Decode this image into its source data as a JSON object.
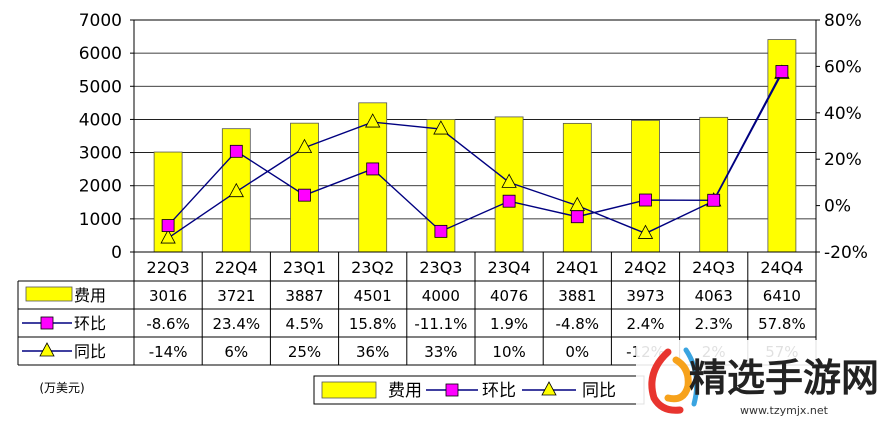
{
  "chart_data": {
    "type": "bar",
    "categories": [
      "22Q3",
      "22Q4",
      "23Q1",
      "23Q2",
      "23Q3",
      "23Q4",
      "24Q1",
      "24Q2",
      "24Q3",
      "24Q4"
    ],
    "unit_note": "(万美元)",
    "left_axis": {
      "ylim": [
        0,
        7000
      ],
      "ticks": [
        "0",
        "1000",
        "2000",
        "3000",
        "4000",
        "5000",
        "6000",
        "7000"
      ]
    },
    "right_axis": {
      "ylim": [
        -20,
        80
      ],
      "ticks": [
        "-20%",
        "0%",
        "20%",
        "40%",
        "60%",
        "80%"
      ]
    },
    "series": [
      {
        "name": "费用",
        "type": "bar",
        "axis": "left",
        "color": "#ffff00",
        "values": [
          3016,
          3721,
          3887,
          4501,
          4000,
          4076,
          3881,
          3973,
          4063,
          6410
        ],
        "labels": [
          "3016",
          "3721",
          "3887",
          "4501",
          "4000",
          "4076",
          "3881",
          "3973",
          "4063",
          "6410"
        ]
      },
      {
        "name": "环比",
        "type": "line",
        "axis": "right",
        "color": "#000080",
        "marker_color": "#ff00ff",
        "marker": "square",
        "values": [
          -8.6,
          23.4,
          4.5,
          15.8,
          -11.1,
          1.9,
          -4.8,
          2.4,
          2.3,
          57.8
        ],
        "labels": [
          "-8.6%",
          "23.4%",
          "4.5%",
          "15.8%",
          "-11.1%",
          "1.9%",
          "-4.8%",
          "2.4%",
          "2.3%",
          "57.8%"
        ]
      },
      {
        "name": "同比",
        "type": "line",
        "axis": "right",
        "color": "#000080",
        "marker_color": "#ffff00",
        "marker": "triangle",
        "values": [
          -14,
          6,
          25,
          36,
          33,
          10,
          0,
          -12,
          2,
          57
        ],
        "labels": [
          "-14%",
          "6%",
          "25%",
          "36%",
          "33%",
          "10%",
          "0%",
          "-12%",
          "2%",
          "57%"
        ]
      }
    ],
    "grid": true,
    "legend": [
      "费用",
      "环比",
      "同比"
    ],
    "legend_position": "bottom"
  },
  "watermark": {
    "name": "精选手游网",
    "url": "www.tzymjx.net",
    "colors": [
      "#e8352f",
      "#f7a21b",
      "#3aa4e0"
    ]
  }
}
